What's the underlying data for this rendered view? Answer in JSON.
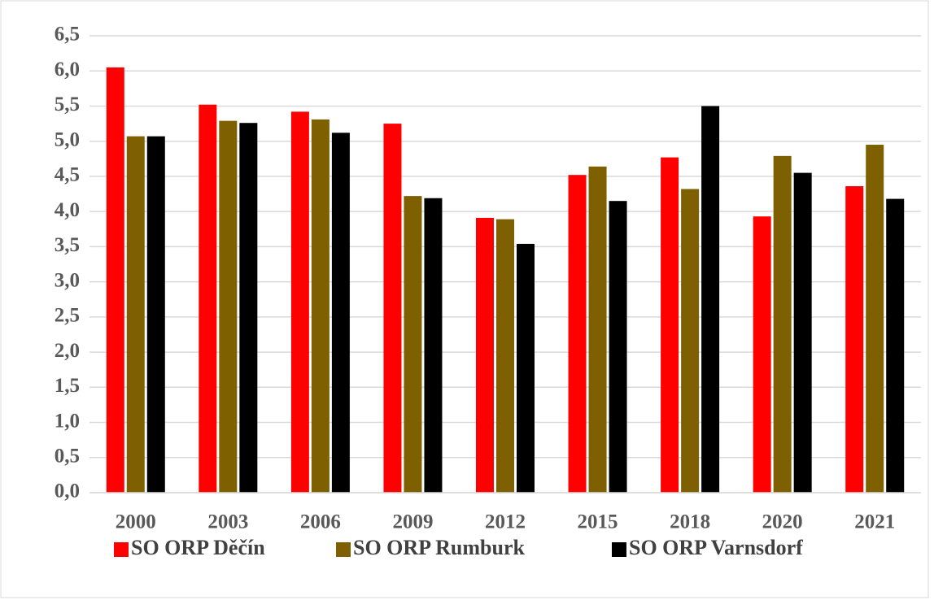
{
  "chart_data": {
    "type": "bar",
    "categories": [
      "2000",
      "2003",
      "2006",
      "2009",
      "2012",
      "2015",
      "2018",
      "2020",
      "2021"
    ],
    "series": [
      {
        "name": "SO ORP Děčín",
        "color": "#ff0000",
        "values": [
          6.05,
          5.52,
          5.42,
          5.25,
          3.91,
          4.52,
          4.77,
          3.93,
          4.36
        ]
      },
      {
        "name": "SO ORP Rumburk",
        "color": "#7f6000",
        "values": [
          5.07,
          5.29,
          5.31,
          4.22,
          3.89,
          4.64,
          4.32,
          4.79,
          4.95
        ]
      },
      {
        "name": "SO ORP Varnsdorf",
        "color": "#000000",
        "values": [
          5.07,
          5.26,
          5.12,
          4.19,
          3.54,
          4.15,
          5.5,
          4.55,
          4.18
        ]
      }
    ],
    "ylim": [
      0,
      6.5
    ],
    "yticks": [
      {
        "value": 0,
        "label": "0,0"
      },
      {
        "value": 0.5,
        "label": "0,5"
      },
      {
        "value": 1,
        "label": "1,0"
      },
      {
        "value": 1.5,
        "label": "1,5"
      },
      {
        "value": 2,
        "label": "2,0"
      },
      {
        "value": 2.5,
        "label": "2,5"
      },
      {
        "value": 3,
        "label": "3,0"
      },
      {
        "value": 3.5,
        "label": "3,5"
      },
      {
        "value": 4,
        "label": "4,0"
      },
      {
        "value": 4.5,
        "label": "4,5"
      },
      {
        "value": 5,
        "label": "5,0"
      },
      {
        "value": 5.5,
        "label": "5,5"
      },
      {
        "value": 6,
        "label": "6,0"
      },
      {
        "value": 6.5,
        "label": "6,5"
      }
    ],
    "grid": true,
    "legend": "bottom"
  }
}
